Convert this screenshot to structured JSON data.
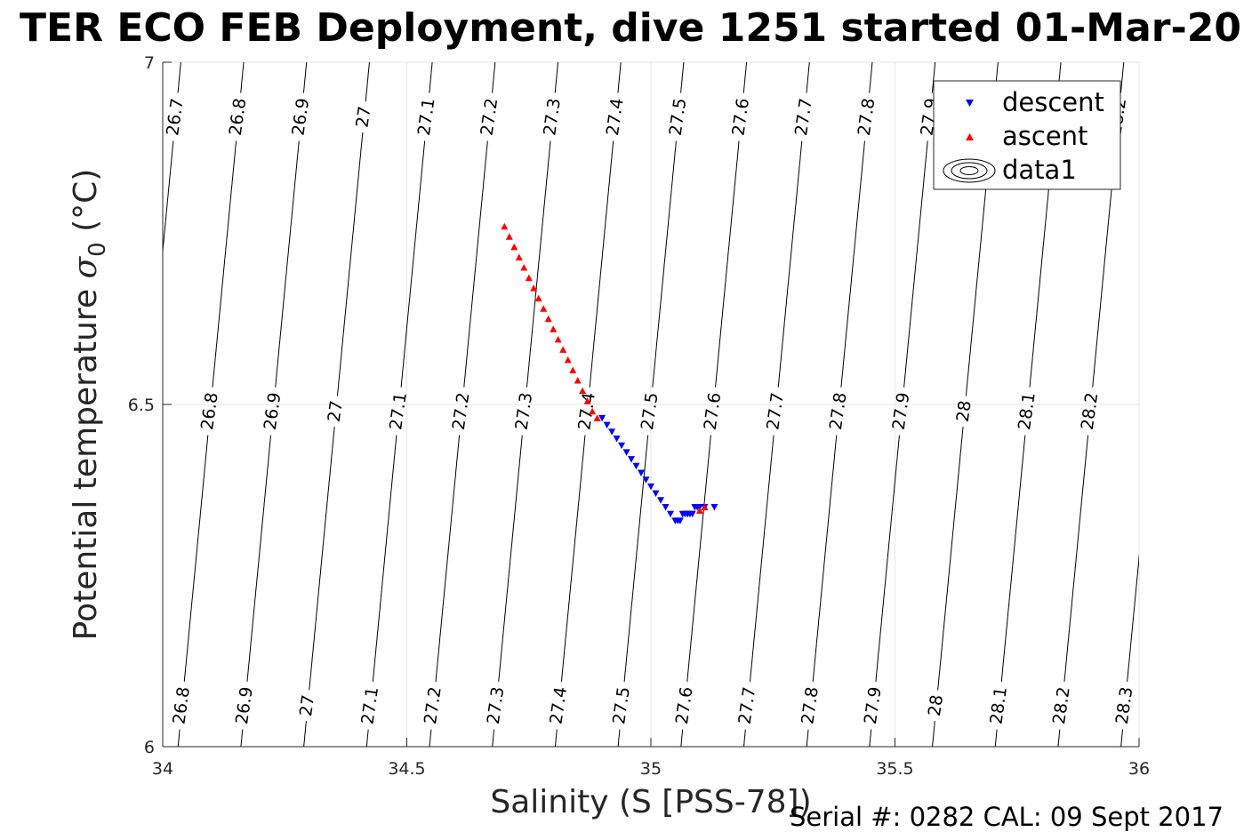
{
  "chart_data": {
    "type": "scatter",
    "title": "TER ECO FEB Deployment, dive 1251 started 01-Mar-20",
    "xlabel": "Salinity (S [PSS-78])",
    "ylabel_main": "Potential temperature ",
    "ylabel_sym": "σ",
    "ylabel_sub": "0",
    "ylabel_unit": " (°C)",
    "xlim": [
      34,
      36
    ],
    "ylim": [
      6,
      7
    ],
    "xticks": [
      34,
      34.5,
      35,
      35.5,
      36
    ],
    "xtick_labels": [
      "34",
      "34.5",
      "35",
      "35.5",
      "36"
    ],
    "yticks": [
      6,
      6.5,
      7
    ],
    "ytick_labels": [
      "6",
      "6.5",
      "7"
    ],
    "grid": true,
    "legend_position": "top-right",
    "footer": "Serial #: 0282  CAL: 09 Sept 2017",
    "contour_levels": [
      26.7,
      26.8,
      26.9,
      27.0,
      27.1,
      27.2,
      27.3,
      27.4,
      27.5,
      27.6,
      27.7,
      27.8,
      27.9,
      28.0,
      28.1,
      28.2,
      28.3
    ],
    "contour_color": "#000000",
    "series": [
      {
        "name": "descent",
        "marker": "triangle-down",
        "color": "#0000ff",
        "points": [
          [
            34.9,
            6.48
          ],
          [
            34.91,
            6.47
          ],
          [
            34.92,
            6.46
          ],
          [
            34.93,
            6.45
          ],
          [
            34.94,
            6.44
          ],
          [
            34.95,
            6.43
          ],
          [
            34.96,
            6.42
          ],
          [
            34.97,
            6.41
          ],
          [
            34.98,
            6.4
          ],
          [
            34.99,
            6.39
          ],
          [
            35.0,
            6.38
          ],
          [
            35.01,
            6.37
          ],
          [
            35.02,
            6.36
          ],
          [
            35.03,
            6.35
          ],
          [
            35.04,
            6.34
          ],
          [
            35.05,
            6.33
          ],
          [
            35.055,
            6.33
          ],
          [
            35.06,
            6.33
          ],
          [
            35.065,
            6.34
          ],
          [
            35.07,
            6.34
          ],
          [
            35.075,
            6.34
          ],
          [
            35.08,
            6.34
          ],
          [
            35.085,
            6.34
          ],
          [
            35.09,
            6.35
          ],
          [
            35.095,
            6.35
          ],
          [
            35.1,
            6.35
          ],
          [
            35.11,
            6.35
          ],
          [
            35.13,
            6.35
          ]
        ]
      },
      {
        "name": "ascent",
        "marker": "triangle-up",
        "color": "#ff0000",
        "points": [
          [
            34.7,
            6.76
          ],
          [
            34.71,
            6.745
          ],
          [
            34.72,
            6.73
          ],
          [
            34.73,
            6.715
          ],
          [
            34.74,
            6.7
          ],
          [
            34.75,
            6.685
          ],
          [
            34.76,
            6.67
          ],
          [
            34.77,
            6.655
          ],
          [
            34.78,
            6.64
          ],
          [
            34.79,
            6.625
          ],
          [
            34.8,
            6.61
          ],
          [
            34.81,
            6.595
          ],
          [
            34.82,
            6.58
          ],
          [
            34.83,
            6.565
          ],
          [
            34.84,
            6.55
          ],
          [
            34.85,
            6.535
          ],
          [
            34.86,
            6.52
          ],
          [
            34.87,
            6.505
          ],
          [
            34.88,
            6.49
          ],
          [
            34.89,
            6.48
          ],
          [
            35.1,
            6.345
          ],
          [
            35.11,
            6.35
          ]
        ]
      },
      {
        "name": "data1",
        "marker": "contour",
        "color": "#000000",
        "points": []
      }
    ]
  }
}
